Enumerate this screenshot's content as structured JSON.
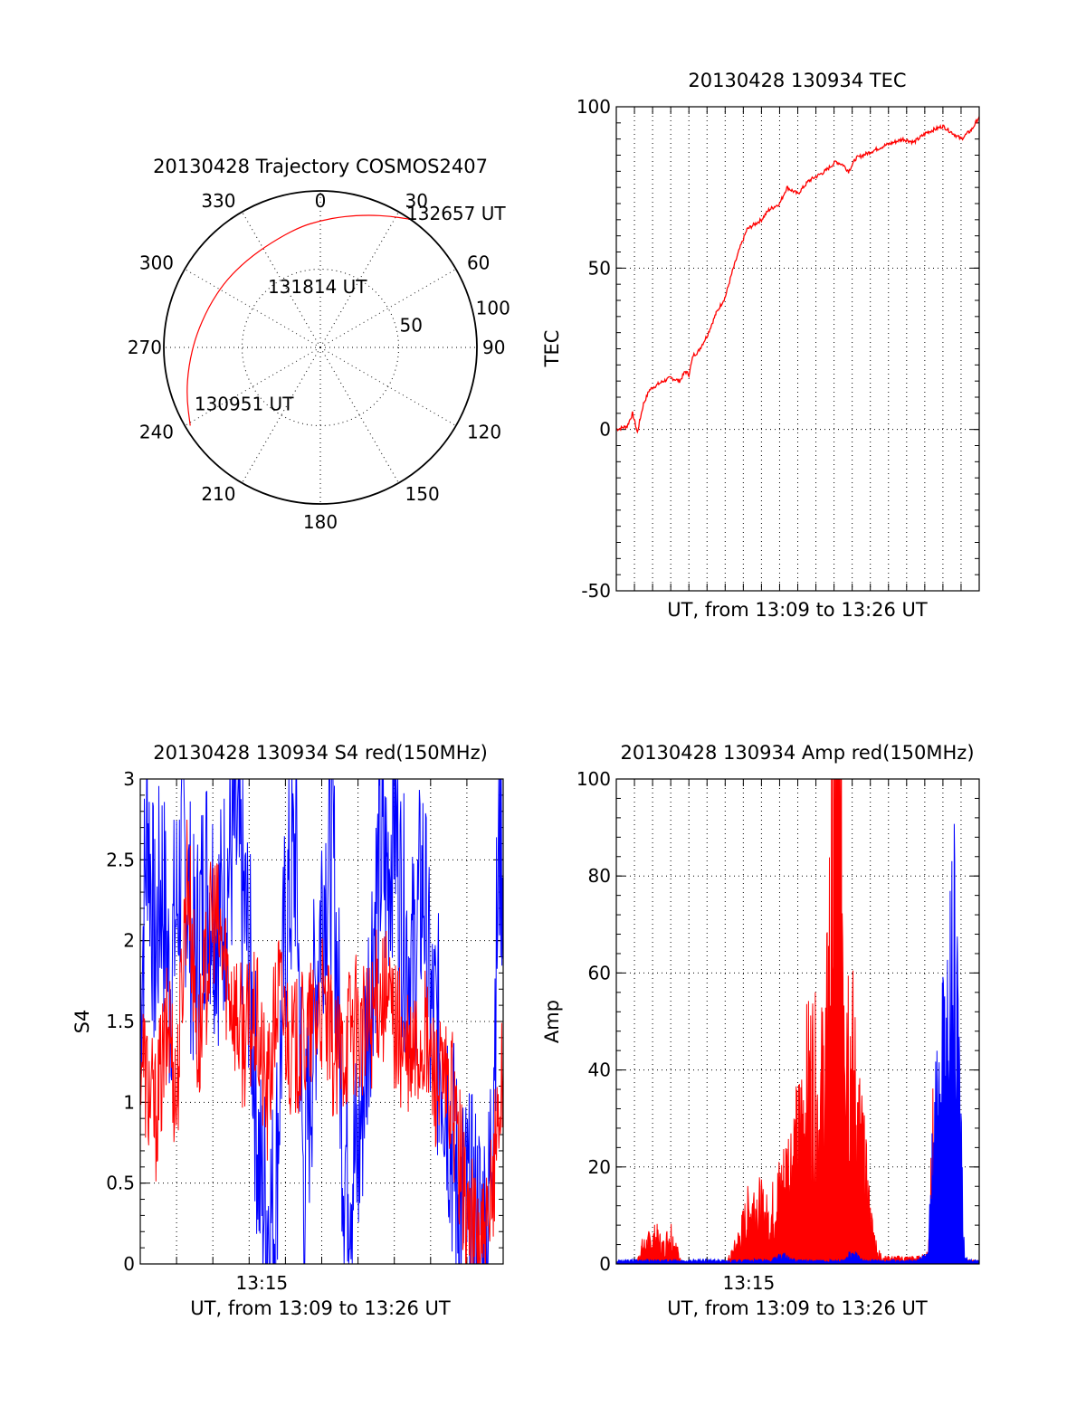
{
  "chart_data": [
    {
      "id": "trajectory",
      "type": "polar",
      "title": "20130428 Trajectory COSMOS2407",
      "angle_labels": [
        "0",
        "30",
        "60",
        "90",
        "120",
        "150",
        "180",
        "210",
        "240",
        "270",
        "300",
        "330"
      ],
      "radius_labels": [
        "50",
        "100"
      ],
      "rlim": [
        0,
        100
      ],
      "direction": "clockwise-from-north",
      "series": [
        {
          "color": "#ff0000",
          "points": [
            {
              "az": 239,
              "r": 97
            },
            {
              "az": 250,
              "r": 91
            },
            {
              "az": 262,
              "r": 85
            },
            {
              "az": 275,
              "r": 80
            },
            {
              "az": 290,
              "r": 76
            },
            {
              "az": 305,
              "r": 74
            },
            {
              "az": 320,
              "r": 73
            },
            {
              "az": 335,
              "r": 74
            },
            {
              "az": 350,
              "r": 78
            },
            {
              "az": 0,
              "r": 81
            },
            {
              "az": 10,
              "r": 85
            },
            {
              "az": 20,
              "r": 90
            },
            {
              "az": 28,
              "r": 95
            },
            {
              "az": 35,
              "r": 100
            }
          ]
        }
      ],
      "annotations": [
        {
          "text": "132657 UT",
          "az": 38,
          "r": 108
        },
        {
          "text": "131814 UT",
          "az": 330,
          "r": 44
        },
        {
          "text": "130951 UT",
          "az": 242,
          "r": 78
        }
      ]
    },
    {
      "id": "tec",
      "type": "line",
      "title": "20130428 130934 TEC",
      "xlabel": "UT, from 13:09 to 13:26 UT",
      "ylabel": "TEC",
      "xlim": [
        0,
        1000
      ],
      "ylim": [
        -50,
        100
      ],
      "yticks": [
        "100",
        "50",
        "0",
        "-50"
      ],
      "ytick_values": [
        100,
        50,
        0,
        -50
      ],
      "x_major_count": 20,
      "grid": true,
      "series": [
        {
          "color": "#ff0000",
          "x": [
            0,
            30,
            45,
            58,
            65,
            75,
            83,
            90,
            100,
            115,
            130,
            150,
            175,
            190,
            200,
            212,
            225,
            250,
            275,
            300,
            320,
            340,
            360,
            400,
            420,
            450,
            470,
            500,
            530,
            575,
            605,
            625,
            640,
            660,
            700,
            740,
            790,
            820,
            855,
            900,
            950,
            980,
            1000
          ],
          "y": [
            0,
            1,
            5,
            -1,
            3,
            8,
            10,
            12,
            13,
            14,
            15,
            16,
            15,
            18,
            17,
            23,
            24,
            29,
            36,
            41,
            49,
            56,
            62,
            65,
            68,
            70,
            75,
            73,
            77,
            80,
            83,
            82,
            80,
            84,
            86,
            88,
            90,
            89,
            92,
            94,
            90,
            93,
            97
          ]
        }
      ]
    },
    {
      "id": "s4",
      "type": "line",
      "title": "20130428 130934 S4 red(150MHz)",
      "xlabel": "UT, from 13:09 to 13:26 UT",
      "ylabel": "S4",
      "xlim": [
        0,
        1000
      ],
      "ylim": [
        0,
        3
      ],
      "yticks": [
        "3",
        "2.5",
        "2",
        "1.5",
        "1",
        "0.5",
        "0"
      ],
      "ytick_values": [
        3,
        2.5,
        2,
        1.5,
        1,
        0.5,
        0
      ],
      "xticks": [
        "13:15"
      ],
      "xtick_values": [
        335
      ],
      "x_major_count": 10,
      "grid": true,
      "series": [
        {
          "color": "#0000ff",
          "x": [
            0,
            20,
            40,
            60,
            80,
            100,
            120,
            150,
            180,
            220,
            260,
            300,
            330,
            350,
            370,
            400,
            430,
            450,
            470,
            500,
            530,
            560,
            600,
            640,
            660,
            680,
            700,
            720,
            750,
            780,
            800,
            820,
            840,
            870,
            900,
            930,
            945,
            960,
            980,
            990,
            1000
          ],
          "y": [
            1.6,
            2.8,
            1.9,
            2.4,
            1.7,
            2.2,
            2.6,
            1.8,
            2.4,
            2.1,
            2.7,
            1.9,
            0.5,
            0.35,
            0.3,
            2.1,
            2.6,
            0.4,
            1.2,
            2.3,
            2.6,
            0.7,
            0.6,
            2.0,
            2.5,
            2.4,
            2.8,
            2.2,
            1.8,
            2.4,
            1.5,
            1.4,
            1.2,
            0.5,
            0.3,
            0.25,
            0.2,
            0.3,
            1.8,
            2.6,
            2.5
          ]
        },
        {
          "color": "#ff0000",
          "x": [
            0,
            20,
            40,
            60,
            80,
            100,
            130,
            160,
            200,
            240,
            280,
            320,
            350,
            380,
            420,
            460,
            500,
            540,
            580,
            620,
            660,
            700,
            740,
            780,
            820,
            860,
            900,
            930,
            960,
            980,
            1000
          ],
          "y": [
            1.4,
            1.1,
            0.9,
            1.2,
            1.5,
            1.0,
            2.5,
            1.3,
            2.2,
            1.8,
            1.4,
            1.5,
            1.0,
            1.7,
            1.3,
            1.4,
            1.6,
            1.2,
            1.5,
            1.4,
            1.7,
            1.5,
            1.2,
            1.4,
            1.1,
            1.0,
            0.3,
            0.15,
            0.1,
            0.8,
            1.2
          ]
        }
      ]
    },
    {
      "id": "amp",
      "type": "area",
      "title": "20130428 130934 Amp red(150MHz)",
      "xlabel": "UT, from 13:09 to 13:26 UT",
      "ylabel": "Amp",
      "xlim": [
        0,
        1000
      ],
      "ylim": [
        0,
        100
      ],
      "yticks": [
        "100",
        "80",
        "60",
        "40",
        "20",
        "0"
      ],
      "ytick_values": [
        100,
        80,
        60,
        40,
        20,
        0
      ],
      "xticks": [
        "13:15"
      ],
      "xtick_values": [
        365
      ],
      "x_major_count": 20,
      "grid": true,
      "series": [
        {
          "color": "#ff0000",
          "x": [
            0,
            55,
            70,
            90,
            110,
            130,
            150,
            170,
            180,
            300,
            320,
            340,
            360,
            380,
            400,
            420,
            440,
            460,
            480,
            500,
            520,
            540,
            560,
            580,
            600,
            620,
            640,
            660,
            680,
            700,
            720,
            740,
            760,
            780,
            800,
            820,
            840,
            860,
            870,
            880,
            895,
            905,
            915,
            930,
            950,
            970,
            990,
            1000
          ],
          "y": [
            0,
            0,
            3,
            4,
            5,
            3,
            6,
            2,
            0,
            0,
            2,
            5,
            9,
            12,
            10,
            8,
            12,
            15,
            20,
            22,
            30,
            35,
            28,
            40,
            90,
            80,
            45,
            30,
            20,
            8,
            2,
            1,
            1,
            1,
            1,
            1,
            1,
            2,
            25,
            10,
            12,
            15,
            8,
            0.5,
            0.5,
            0.5,
            0.5,
            0.5
          ]
        },
        {
          "color": "#0000ff",
          "x": [
            0,
            80,
            160,
            240,
            320,
            380,
            420,
            440,
            460,
            480,
            500,
            520,
            560,
            600,
            630,
            640,
            660,
            680,
            700,
            720,
            740,
            780,
            820,
            860,
            870,
            880,
            890,
            900,
            910,
            920,
            930,
            945,
            960,
            980,
            1000
          ],
          "y": [
            0.5,
            0.6,
            0.5,
            0.6,
            0.5,
            0.6,
            0.5,
            1.0,
            1.5,
            0.8,
            0.6,
            0.5,
            0.5,
            0.5,
            0.5,
            1.5,
            1.5,
            0.5,
            0.5,
            0.5,
            0.5,
            0.5,
            0.5,
            1.5,
            20,
            32,
            28,
            40,
            45,
            50,
            62,
            30,
            1,
            0.5,
            0.5
          ]
        }
      ]
    }
  ]
}
